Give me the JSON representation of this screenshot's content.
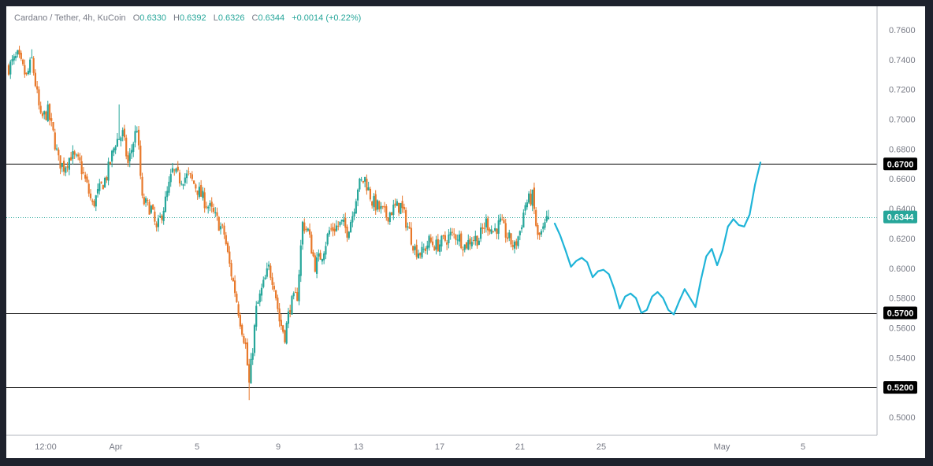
{
  "header": {
    "symbol": "Cardano / Tether, 4h, KuCoin",
    "open_label": "O",
    "open": "0.6330",
    "high_label": "H",
    "high": "0.6392",
    "low_label": "L",
    "low": "0.6326",
    "close_label": "C",
    "close": "0.6344",
    "change": "+0.0014 (+0.22%)"
  },
  "colors": {
    "up": "#26a69a",
    "down": "#e8782a",
    "projection": "#1fb4d8",
    "level_line": "#000000",
    "last_price_badge": "#26a69a",
    "level_badge": "#000000"
  },
  "chart_data": {
    "type": "candlestick",
    "title": "Cardano / Tether, 4h, KuCoin",
    "y_axis": {
      "ylim": [
        0.49,
        0.766
      ],
      "ticks": [
        "0.7600",
        "0.7400",
        "0.7200",
        "0.7000",
        "0.6800",
        "0.6600",
        "0.6400",
        "0.6200",
        "0.6000",
        "0.5800",
        "0.5600",
        "0.5400",
        "0.5000"
      ]
    },
    "x_axis": {
      "ticks": [
        "12:00",
        "Apr",
        "5",
        "9",
        "13",
        "17",
        "21",
        "25",
        "May",
        "5"
      ]
    },
    "last_price": "0.6344",
    "horizontal_levels": [
      "0.6700",
      "0.5700",
      "0.5200"
    ],
    "grid": false,
    "price_path": [
      [
        0,
        0.735
      ],
      [
        5,
        0.742
      ],
      [
        10,
        0.728
      ],
      [
        13,
        0.74
      ],
      [
        18,
        0.7
      ],
      [
        22,
        0.705
      ],
      [
        25,
        0.69
      ],
      [
        28,
        0.672
      ],
      [
        31,
        0.668
      ],
      [
        35,
        0.676
      ],
      [
        40,
        0.67
      ],
      [
        44,
        0.655
      ],
      [
        47,
        0.642
      ],
      [
        50,
        0.65
      ],
      [
        55,
        0.662
      ],
      [
        60,
        0.685
      ],
      [
        64,
        0.69
      ],
      [
        67,
        0.67
      ],
      [
        72,
        0.695
      ],
      [
        75,
        0.645
      ],
      [
        80,
        0.64
      ],
      [
        83,
        0.625
      ],
      [
        88,
        0.645
      ],
      [
        92,
        0.665
      ],
      [
        96,
        0.66
      ],
      [
        101,
        0.662
      ],
      [
        105,
        0.655
      ],
      [
        110,
        0.645
      ],
      [
        113,
        0.64
      ],
      [
        117,
        0.632
      ],
      [
        121,
        0.623
      ],
      [
        124,
        0.602
      ],
      [
        127,
        0.585
      ],
      [
        130,
        0.565
      ],
      [
        133,
        0.548
      ],
      [
        135,
        0.522
      ],
      [
        139,
        0.572
      ],
      [
        142,
        0.585
      ],
      [
        146,
        0.6
      ],
      [
        149,
        0.59
      ],
      [
        152,
        0.565
      ],
      [
        155,
        0.555
      ],
      [
        158,
        0.575
      ],
      [
        162,
        0.582
      ],
      [
        165,
        0.63
      ],
      [
        168,
        0.625
      ],
      [
        172,
        0.602
      ],
      [
        176,
        0.61
      ],
      [
        180,
        0.625
      ],
      [
        184,
        0.628
      ],
      [
        187,
        0.63
      ],
      [
        190,
        0.625
      ],
      [
        193,
        0.636
      ],
      [
        196,
        0.655
      ],
      [
        200,
        0.66
      ],
      [
        204,
        0.645
      ],
      [
        208,
        0.64
      ],
      [
        212,
        0.635
      ],
      [
        216,
        0.64
      ],
      [
        220,
        0.642
      ],
      [
        224,
        0.628
      ],
      [
        228,
        0.613
      ],
      [
        232,
        0.61
      ],
      [
        236,
        0.618
      ],
      [
        240,
        0.615
      ],
      [
        244,
        0.618
      ],
      [
        248,
        0.622
      ],
      [
        252,
        0.622
      ],
      [
        256,
        0.615
      ],
      [
        260,
        0.62
      ],
      [
        264,
        0.62
      ],
      [
        268,
        0.631
      ],
      [
        272,
        0.625
      ],
      [
        276,
        0.63
      ],
      [
        280,
        0.621
      ],
      [
        284,
        0.614
      ],
      [
        287,
        0.625
      ],
      [
        290,
        0.643
      ],
      [
        294,
        0.648
      ],
      [
        297,
        0.62
      ],
      [
        300,
        0.625
      ],
      [
        303,
        0.634
      ]
    ],
    "projection_series": [
      [
        0.63,
        0.622,
        0.612,
        0.601,
        0.605,
        0.607,
        0.604,
        0.594,
        0.598,
        0.599,
        0.596,
        0.586,
        0.573,
        0.581,
        0.583,
        0.58,
        0.57,
        0.572,
        0.581,
        0.584,
        0.58,
        0.572,
        0.569,
        0.578,
        0.586,
        0.58,
        0.574,
        0.592,
        0.608,
        0.613,
        0.602,
        0.612,
        0.628,
        0.633,
        0.629,
        0.628,
        0.636,
        0.656,
        0.671
      ]
    ]
  },
  "time_positions": {
    "candle_count": 304
  }
}
